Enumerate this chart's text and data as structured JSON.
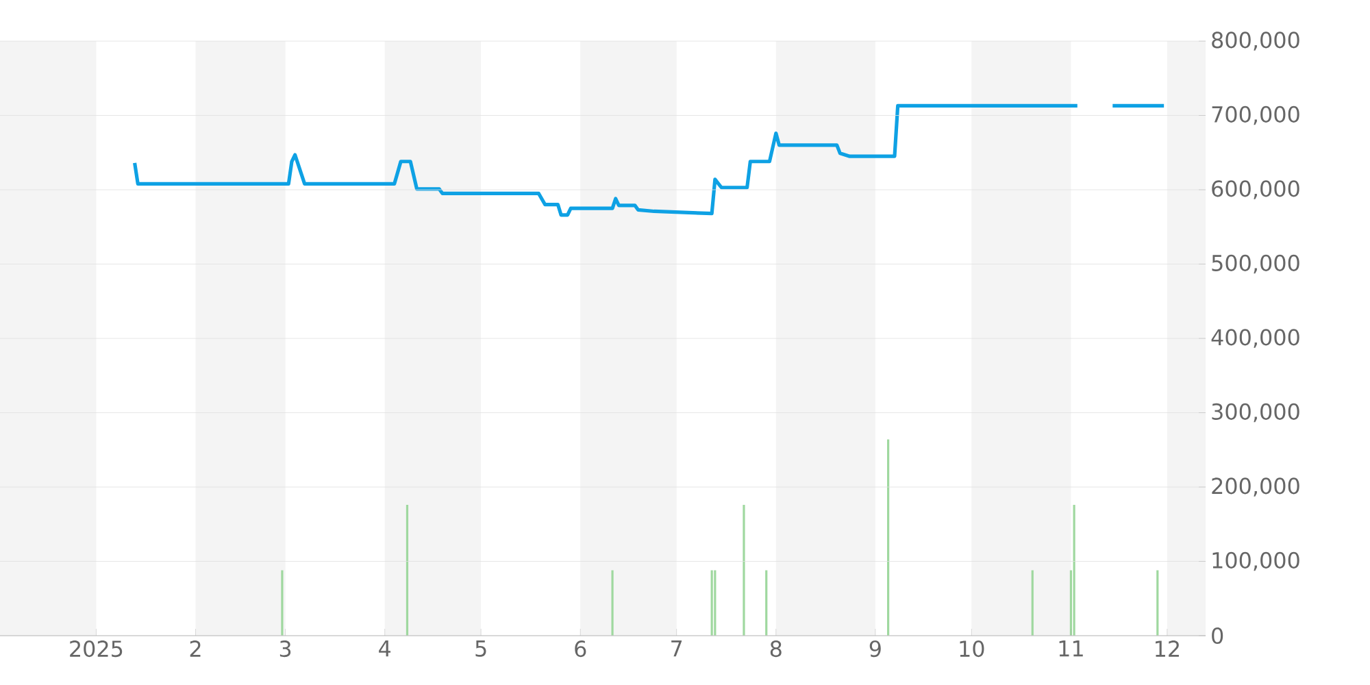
{
  "chart_data": {
    "type": "line",
    "xlim": [
      "2024-12-02",
      "2025-12-13"
    ],
    "xticks": [
      {
        "value": "2025-01-01",
        "label": "2025"
      },
      {
        "value": "2025-02-01",
        "label": "2"
      },
      {
        "value": "2025-03-01",
        "label": "3"
      },
      {
        "value": "2025-04-01",
        "label": "4"
      },
      {
        "value": "2025-05-01",
        "label": "5"
      },
      {
        "value": "2025-06-01",
        "label": "6"
      },
      {
        "value": "2025-07-01",
        "label": "7"
      },
      {
        "value": "2025-08-01",
        "label": "8"
      },
      {
        "value": "2025-09-01",
        "label": "9"
      },
      {
        "value": "2025-10-01",
        "label": "10"
      },
      {
        "value": "2025-11-01",
        "label": "11"
      },
      {
        "value": "2025-12-01",
        "label": "12"
      }
    ],
    "ylim": [
      0,
      800000
    ],
    "yticks": [
      {
        "value": 0,
        "label": "0"
      },
      {
        "value": 100000,
        "label": "100,000"
      },
      {
        "value": 200000,
        "label": "200,000"
      },
      {
        "value": 300000,
        "label": "300,000"
      },
      {
        "value": 400000,
        "label": "400,000"
      },
      {
        "value": 500000,
        "label": "500,000"
      },
      {
        "value": 600000,
        "label": "600,000"
      },
      {
        "value": 700000,
        "label": "700,000"
      },
      {
        "value": 800000,
        "label": "800,000"
      }
    ],
    "grid": "y",
    "bands": [
      {
        "axis": "x",
        "from": "2024-12-02",
        "to": "2025-01-01",
        "color": "#f4f4f4"
      },
      {
        "axis": "x",
        "from": "2025-02-01",
        "to": "2025-03-01",
        "color": "#f4f4f4"
      },
      {
        "axis": "x",
        "from": "2025-04-01",
        "to": "2025-05-01",
        "color": "#f4f4f4"
      },
      {
        "axis": "x",
        "from": "2025-06-01",
        "to": "2025-07-01",
        "color": "#f4f4f4"
      },
      {
        "axis": "x",
        "from": "2025-08-01",
        "to": "2025-09-01",
        "color": "#f4f4f4"
      },
      {
        "axis": "x",
        "from": "2025-10-01",
        "to": "2025-11-01",
        "color": "#f4f4f4"
      },
      {
        "axis": "x",
        "from": "2025-12-01",
        "to": "2025-12-13",
        "color": "#f4f4f4"
      }
    ],
    "series": [
      {
        "type": "bar",
        "color": "#9fd89f",
        "x": [
          "2025-02-28",
          "2025-04-08",
          "2025-06-11",
          "2025-07-12",
          "2025-07-13",
          "2025-07-22",
          "2025-07-29",
          "2025-09-05",
          "2025-10-20",
          "2025-11-01",
          "2025-11-02",
          "2025-11-28"
        ],
        "values": [
          88000,
          176000,
          88000,
          88000,
          88000,
          176000,
          88000,
          264000,
          88000,
          88000,
          176000,
          88000
        ]
      },
      {
        "color": "#0ea1e4",
        "x": [
          "2025-01-13",
          "2025-01-14",
          "2025-03-02",
          "2025-03-03",
          "2025-03-04",
          "2025-03-07",
          "2025-04-04",
          "2025-04-06",
          "2025-04-09",
          "2025-04-11",
          "2025-04-18",
          "2025-04-19",
          "2025-05-19",
          "2025-05-21",
          "2025-05-25",
          "2025-05-26",
          "2025-05-28",
          "2025-05-29",
          "2025-06-11",
          "2025-06-12",
          "2025-06-13",
          "2025-06-18",
          "2025-06-19",
          "2025-06-24",
          "2025-07-12",
          "2025-07-13",
          "2025-07-15",
          "2025-07-23",
          "2025-07-24",
          "2025-07-30",
          "2025-08-01",
          "2025-08-02",
          "2025-08-20",
          "2025-08-21",
          "2025-08-24",
          "2025-09-07",
          "2025-09-08",
          "2025-11-03",
          "2025-11-08",
          "2025-11-14",
          "2025-11-30"
        ],
        "values": [
          636000,
          608000,
          608000,
          638000,
          647000,
          608000,
          608000,
          638000,
          638000,
          601000,
          601000,
          595000,
          595000,
          580000,
          580000,
          566000,
          566000,
          575000,
          575000,
          588000,
          579000,
          579000,
          573000,
          571000,
          568000,
          614000,
          603000,
          603000,
          638000,
          638000,
          676000,
          660000,
          660000,
          649000,
          645000,
          645000,
          713000,
          713000,
          null,
          713000,
          713000
        ]
      }
    ]
  }
}
